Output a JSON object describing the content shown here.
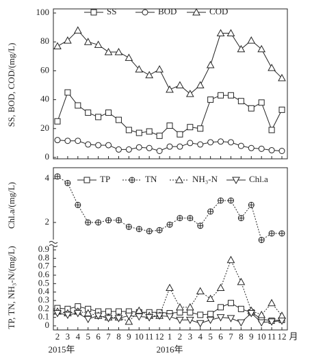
{
  "chart_data": [
    {
      "type": "line",
      "ylabel": "SS, BOD, COD/(mg/L)",
      "ylim": [
        0,
        100
      ],
      "yticks": [
        0,
        20,
        40,
        60,
        80,
        100
      ],
      "series": [
        {
          "name": "SS",
          "color": "#222",
          "marker": "square",
          "line_style": "solid",
          "values": [
            25,
            45,
            36,
            31,
            28,
            31,
            26,
            19,
            17,
            18,
            15,
            22,
            16,
            21,
            20,
            40,
            43,
            43,
            39,
            34,
            38,
            19,
            33
          ]
        },
        {
          "name": "BOD",
          "color": "#222",
          "marker": "circle",
          "line_style": "solid",
          "values": [
            12,
            11.5,
            11.5,
            9,
            8.5,
            8.5,
            5.5,
            5.5,
            7,
            6.5,
            4.5,
            7.5,
            7.5,
            10,
            9,
            10.5,
            11,
            10.5,
            8,
            6.5,
            6,
            5,
            4.5
          ]
        },
        {
          "name": "COD",
          "color": "#222",
          "marker": "triangle",
          "line_style": "solid",
          "values": [
            77,
            81,
            88,
            80,
            78,
            73,
            73,
            69,
            61,
            57,
            61,
            47,
            50,
            44,
            50,
            64,
            86,
            86,
            75,
            81,
            75,
            62,
            55
          ]
        }
      ]
    },
    {
      "type": "line",
      "categories": [
        "2",
        "3",
        "4",
        "5",
        "6",
        "7",
        "8",
        "9",
        "10",
        "11",
        "12",
        "1",
        "2",
        "3",
        "4",
        "5",
        "6",
        "7",
        "8",
        "9",
        "10",
        "11",
        "12"
      ],
      "x_unit": "月",
      "year_labels": [
        "2015年",
        "2016年"
      ],
      "ylabel": "TP, TN, NH₃-N/(mg/L)",
      "ylim": [
        0,
        0.9
      ],
      "yticks": [
        0,
        0.1,
        0.2,
        0.3,
        0.4,
        0.5,
        0.6,
        0.7,
        0.8,
        0.9
      ],
      "y2label": "Chl.a/(mg/L)",
      "y2lim": [
        1,
        4.5
      ],
      "y2ticks": [
        2,
        4
      ],
      "series": [
        {
          "name": "TP",
          "color": "#222",
          "marker": "square",
          "line_style": "solid",
          "values": [
            0.21,
            0.2,
            0.23,
            0.2,
            0.17,
            0.17,
            0.17,
            0.17,
            0.16,
            0.16,
            0.16,
            0.15,
            0.16,
            0.16,
            0.13,
            0.14,
            0.22,
            0.27,
            0.2,
            0.16,
            0.08,
            0.06,
            0.07
          ]
        },
        {
          "name": "TN",
          "color": "#222",
          "marker": "circle-cross",
          "line_style": "dotted",
          "axis": "y2",
          "values": [
            4.1,
            3.8,
            2.8,
            2.0,
            2.0,
            2.1,
            2.1,
            1.8,
            1.7,
            1.6,
            1.65,
            1.9,
            2.2,
            2.2,
            1.85,
            2.5,
            3.0,
            3.0,
            2.2,
            2.8,
            1.2,
            1.5,
            1.5
          ]
        },
        {
          "name": "NH₃-N",
          "color": "#222",
          "marker": "triangle-dot",
          "line_style": "dotted",
          "values": [
            0.17,
            0.15,
            0.17,
            0.15,
            0.12,
            0.1,
            0.1,
            0.05,
            0.18,
            0.12,
            0.12,
            0.45,
            0.22,
            0.22,
            0.41,
            0.32,
            0.45,
            0.78,
            0.52,
            0.18,
            0.13,
            0.27,
            0.12
          ]
        },
        {
          "name": "Chl.a",
          "color": "#222",
          "marker": "triangle-down",
          "line_style": "solid",
          "values": [
            0.15,
            0.13,
            0.15,
            0.08,
            0.12,
            0.09,
            0.09,
            0.12,
            0.11,
            0.1,
            0.12,
            0.11,
            0.07,
            0.07,
            0.03,
            0.07,
            0.1,
            0.09,
            0.04,
            0.15,
            0.04,
            0.05,
            0.06
          ]
        }
      ]
    }
  ]
}
